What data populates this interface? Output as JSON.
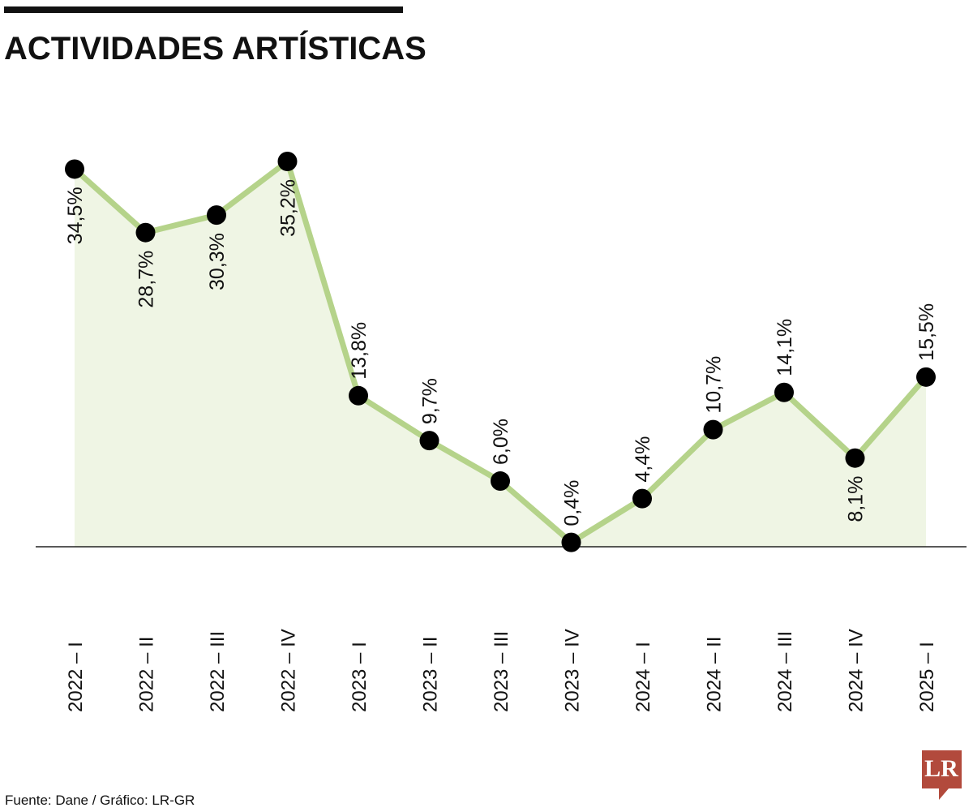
{
  "chart_data": {
    "type": "line",
    "title": "ACTIVIDADES ARTÍSTICAS",
    "categories": [
      "2022 – I",
      "2022 – II",
      "2022 – III",
      "2022 – IV",
      "2023 – I",
      "2023 – II",
      "2023 – III",
      "2023 – IV",
      "2024 – I",
      "2024 – II",
      "2024 – III",
      "2024 – IV",
      "2025 – I"
    ],
    "values": [
      34.5,
      28.7,
      30.3,
      35.2,
      13.8,
      9.7,
      6.0,
      0.4,
      4.4,
      10.7,
      14.1,
      8.1,
      15.5
    ],
    "labels": [
      "34,5%",
      "28,7%",
      "30,3%",
      "35,2%",
      "13,8%",
      "9,7%",
      "6,0%",
      "0,4%",
      "4,4%",
      "10,7%",
      "14,1%",
      "8,1%",
      "15,5%"
    ],
    "label_positions": [
      "below",
      "below",
      "below",
      "below",
      "above",
      "above",
      "above",
      "above",
      "above",
      "above",
      "above",
      "below",
      "above"
    ],
    "ylim": [
      0,
      35.2
    ],
    "grid": false,
    "fill": true,
    "colors": {
      "line": "#b5d38a",
      "area": "#eff5e4",
      "marker": "#000000",
      "baseline": "#222222"
    }
  },
  "source": "Fuente: Dane / Gráfico: LR-GR",
  "logo": {
    "text": "LR",
    "color": "#b24a3c"
  }
}
